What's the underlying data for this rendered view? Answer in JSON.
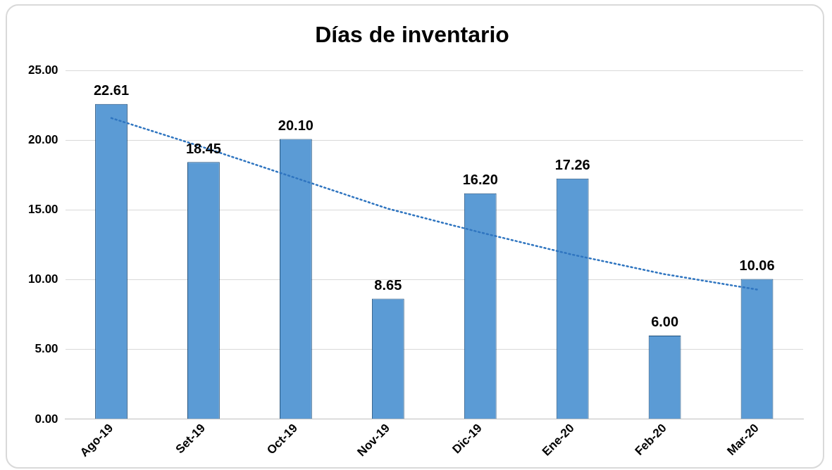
{
  "chart_data": {
    "type": "bar",
    "title": "Días de inventario",
    "categories": [
      "Ago-19",
      "Set-19",
      "Oct-19",
      "Nov-19",
      "Dic-19",
      "Ene-20",
      "Feb-20",
      "Mar-20"
    ],
    "series": [
      {
        "color": "#5b9bd5",
        "values": [
          22.61,
          18.45,
          20.1,
          8.65,
          16.2,
          17.26,
          6.0,
          10.06
        ],
        "value_labels": [
          "22.61",
          "18.45",
          "20.10",
          "8.65",
          "16.20",
          "17.26",
          "6.00",
          "10.06"
        ]
      },
      {
        "type": "line",
        "color": "#2f75c0",
        "x": [
          "Ago-19",
          "Set-19",
          "Oct-19",
          "Nov-19",
          "Dic-19",
          "Ene-20",
          "Feb-20",
          "Mar-20"
        ],
        "values": [
          21.6,
          19.5,
          17.3,
          15.1,
          13.4,
          11.8,
          10.4,
          9.3
        ],
        "marker": "none",
        "line_style": "dotted"
      }
    ],
    "ylim": [
      0,
      25
    ],
    "yticks": [
      {
        "value": 0,
        "label": "0.00"
      },
      {
        "value": 5,
        "label": "5.00"
      },
      {
        "value": 10,
        "label": "10.00"
      },
      {
        "value": 15,
        "label": "15.00"
      },
      {
        "value": 20,
        "label": "20.00"
      },
      {
        "value": 25,
        "label": "25.00"
      }
    ],
    "grid": "y",
    "legend": false
  }
}
